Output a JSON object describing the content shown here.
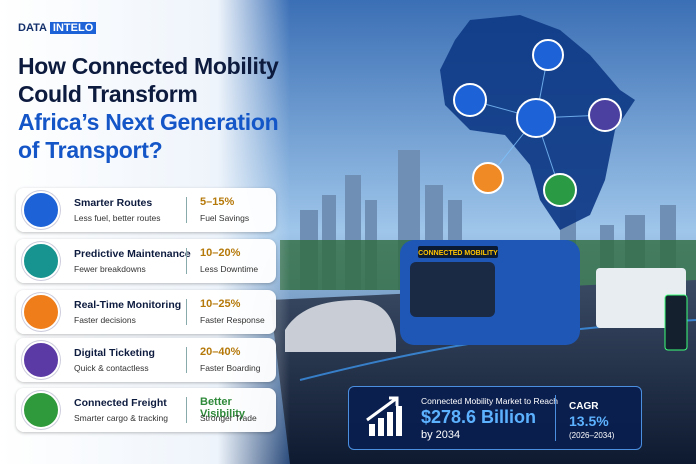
{
  "brand": {
    "left": "DATA",
    "right": "INTELO"
  },
  "title": {
    "lines": [
      "How Connected Mobility",
      "Could Transform",
      "Africa’s Next Generation",
      "of Transport?"
    ]
  },
  "items": [
    {
      "title": "Smarter Routes",
      "subtitle": "Less fuel, better routes",
      "value": "5–15%",
      "value_label": "Fuel Savings"
    },
    {
      "title": "Predictive Maintenance",
      "subtitle": "Fewer breakdowns",
      "value": "10–20%",
      "value_label": "Less Downtime"
    },
    {
      "title": "Real-Time Monitoring",
      "subtitle": "Faster decisions",
      "value": "10–25%",
      "value_label": "Faster Response"
    },
    {
      "title": "Digital Ticketing",
      "subtitle": "Quick & contactless",
      "value": "20–40%",
      "value_label": "Faster Boarding"
    },
    {
      "title": "Connected Freight",
      "subtitle": "Smarter cargo & tracking",
      "value": "Better Visibility",
      "value_label": "Stronger Trade"
    }
  ],
  "bus_sign": "CONNECTED MOBILITY",
  "market": {
    "heading": "Connected Mobility Market to Reach",
    "amount": "$278.6 Billion",
    "year": "by 2034",
    "cagr_label": "CAGR",
    "cagr_value": "13.5%",
    "cagr_period": "(2026–2034)"
  }
}
